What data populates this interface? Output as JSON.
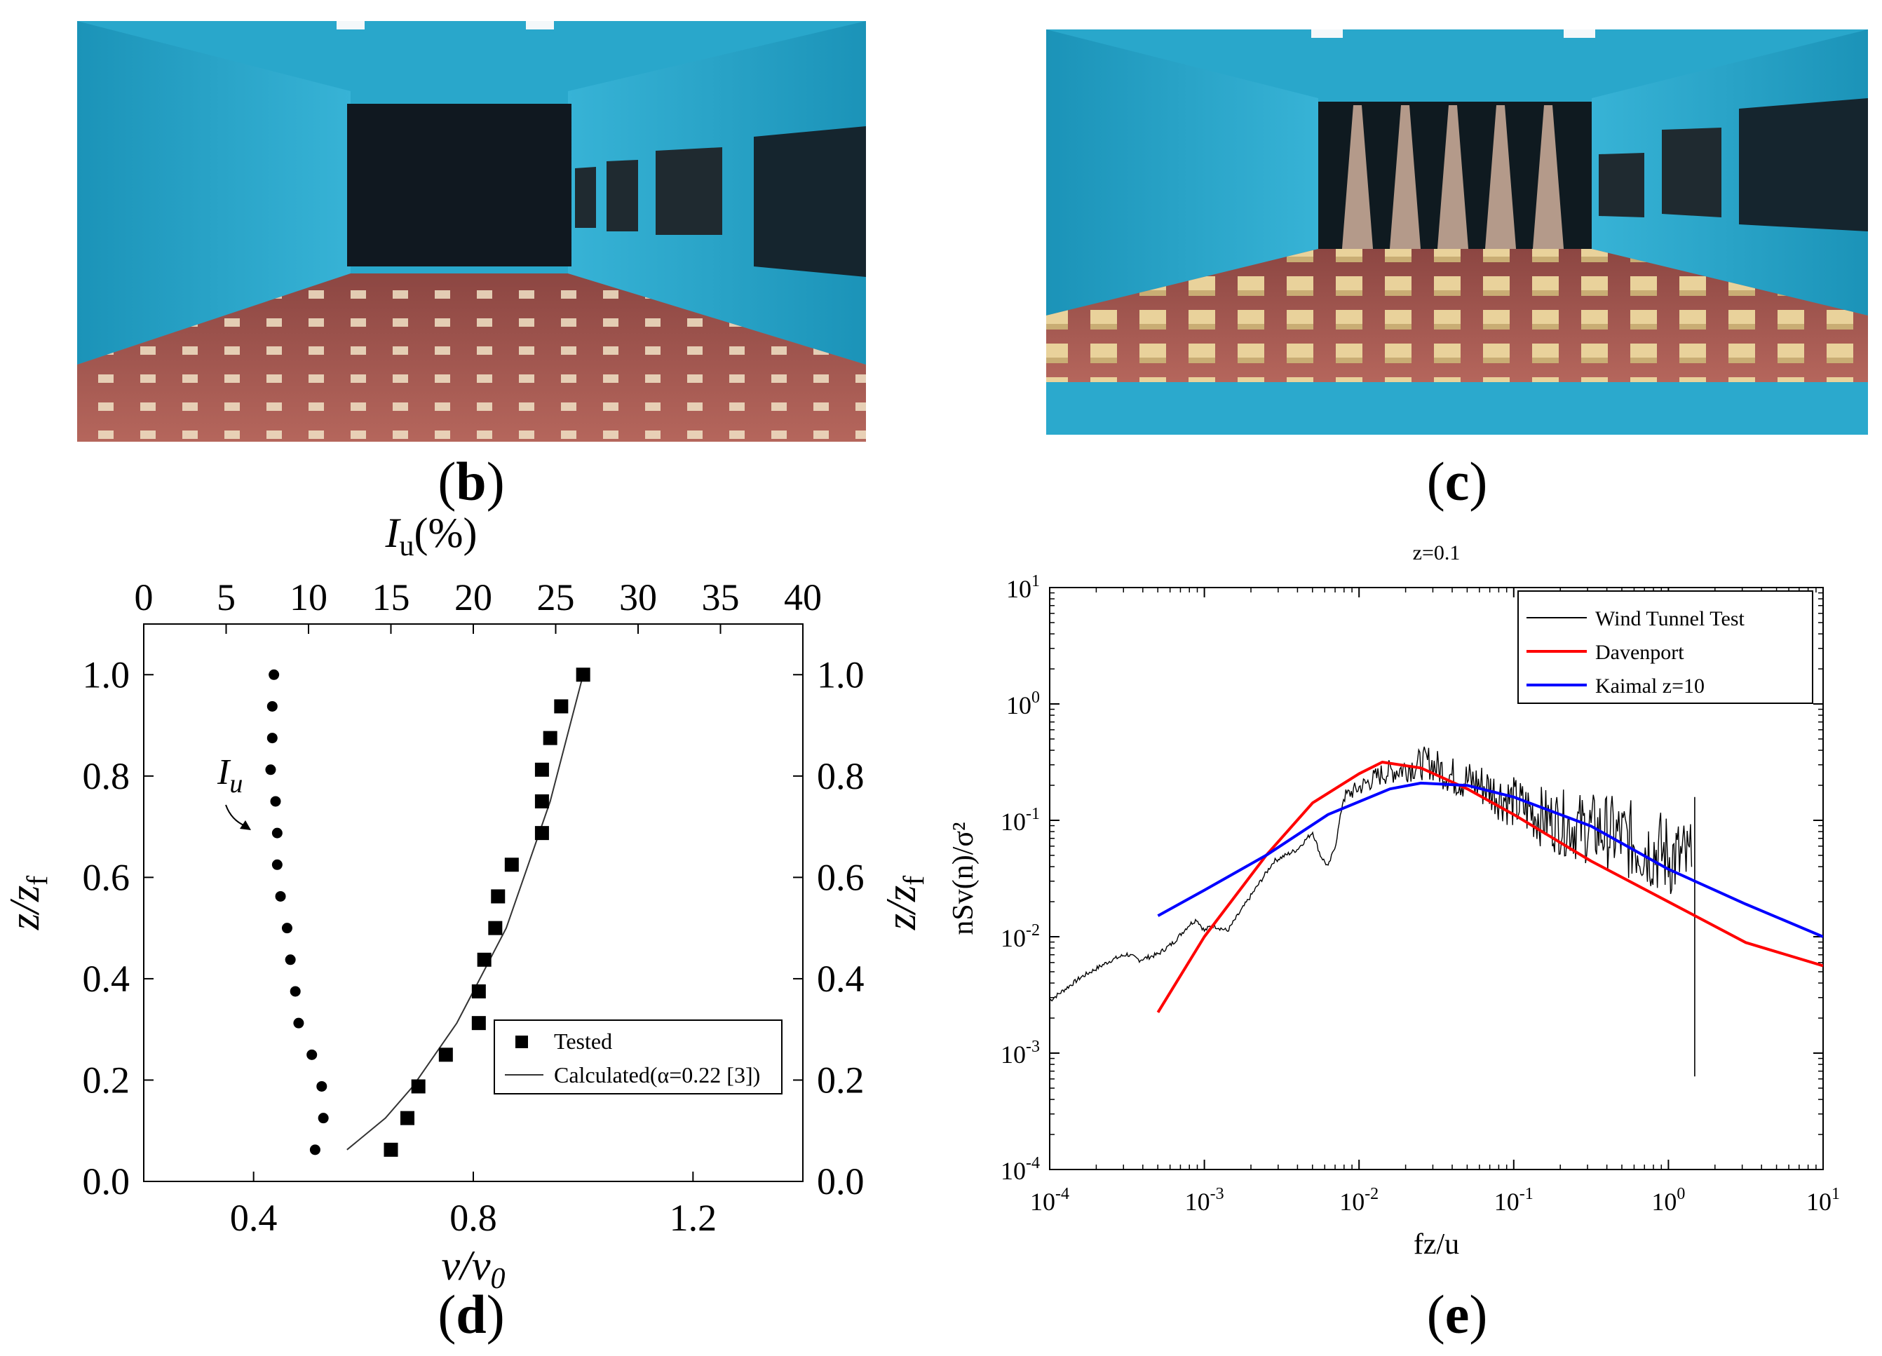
{
  "panels": {
    "b": {
      "label": "b"
    },
    "c": {
      "label": "c"
    },
    "d": {
      "label": "d"
    },
    "e": {
      "label": "e"
    }
  },
  "colors": {
    "tunnel_wall": "#25a4c7",
    "tunnel_floor": "#a85b55",
    "roughness_block": "#e8d4a0",
    "davenport": "#ff0000",
    "kaimal": "#0000ff",
    "wind_tunnel": "#000000"
  },
  "photos": {
    "b": {
      "icon": "wind-tunnel-empty-photo"
    },
    "c": {
      "icon": "wind-tunnel-roughness-spires-photo"
    }
  },
  "chart_data": [
    {
      "id": "d",
      "type": "scatter",
      "title": "",
      "xlabel_prefix": "v/v",
      "xlabel_sub": "0",
      "xlim": [
        0.2,
        1.4
      ],
      "xticks": [
        "0.4",
        "0.8",
        "1.2"
      ],
      "xtick_values": [
        0.4,
        0.8,
        1.2
      ],
      "ylabel_prefix": "z/z",
      "ylabel_sub": "f",
      "ylim": [
        0.0,
        1.1
      ],
      "yticks": [
        "0.0",
        "0.2",
        "0.4",
        "0.6",
        "0.8",
        "1.0"
      ],
      "ytick_values": [
        0.0,
        0.2,
        0.4,
        0.6,
        0.8,
        1.0
      ],
      "top_axis_label_prefix": "I",
      "top_axis_label_sub": "u",
      "top_axis_label_suffix": "(%)",
      "top_xlim": [
        0,
        40
      ],
      "top_xticks": [
        "0",
        "5",
        "10",
        "15",
        "20",
        "25",
        "30",
        "35",
        "40"
      ],
      "top_xtick_values": [
        0,
        5,
        10,
        15,
        20,
        25,
        30,
        35,
        40
      ],
      "annotation_prefix": "I",
      "annotation_sub": "u",
      "legend_position": "bottom-right",
      "series": [
        {
          "name": "Tested",
          "marker": "square",
          "axis": "bottom",
          "points": [
            [
              0.65,
              0.0625
            ],
            [
              0.68,
              0.125
            ],
            [
              0.7,
              0.1875
            ],
            [
              0.75,
              0.25
            ],
            [
              0.81,
              0.3125
            ],
            [
              0.81,
              0.375
            ],
            [
              0.82,
              0.4375
            ],
            [
              0.84,
              0.5
            ],
            [
              0.845,
              0.5625
            ],
            [
              0.87,
              0.625
            ],
            [
              0.925,
              0.6875
            ],
            [
              0.925,
              0.75
            ],
            [
              0.925,
              0.8125
            ],
            [
              0.94,
              0.875
            ],
            [
              0.96,
              0.9375
            ],
            [
              1.0,
              1.0
            ]
          ]
        },
        {
          "name": "Calculated(α=0.22 [3])",
          "marker": "line",
          "axis": "bottom",
          "points": [
            [
              0.57,
              0.0625
            ],
            [
              0.64,
              0.125
            ],
            [
              0.69,
              0.1875
            ],
            [
              0.73,
              0.25
            ],
            [
              0.77,
              0.3125
            ],
            [
              0.8,
              0.375
            ],
            [
              0.83,
              0.4375
            ],
            [
              0.86,
              0.5
            ],
            [
              0.88,
              0.5625
            ],
            [
              0.9,
              0.625
            ],
            [
              0.92,
              0.6875
            ],
            [
              0.94,
              0.75
            ],
            [
              0.955,
              0.8125
            ],
            [
              0.97,
              0.875
            ],
            [
              0.985,
              0.9375
            ],
            [
              1.0,
              1.0
            ]
          ]
        },
        {
          "name": "I_u",
          "marker": "circle",
          "axis": "top",
          "points": [
            [
              10.4,
              0.0625
            ],
            [
              10.9,
              0.125
            ],
            [
              10.8,
              0.1875
            ],
            [
              10.2,
              0.25
            ],
            [
              9.4,
              0.3125
            ],
            [
              9.2,
              0.375
            ],
            [
              8.9,
              0.4375
            ],
            [
              8.7,
              0.5
            ],
            [
              8.3,
              0.5625
            ],
            [
              8.1,
              0.625
            ],
            [
              8.1,
              0.6875
            ],
            [
              8.0,
              0.75
            ],
            [
              7.7,
              0.8125
            ],
            [
              7.8,
              0.875
            ],
            [
              7.8,
              0.9375
            ],
            [
              7.9,
              1.0
            ]
          ]
        }
      ]
    },
    {
      "id": "e",
      "type": "line",
      "title": "z=0.1",
      "xlabel": "fz/u",
      "xscale": "log",
      "xlim_exp": [
        -4,
        1
      ],
      "xtick_exponents": [
        "-4",
        "-3",
        "-2",
        "-1",
        "0",
        "1"
      ],
      "xtick_base": "10",
      "ylabel": "nSv(n)/σ²",
      "yscale": "log",
      "ylim_exp": [
        -4,
        1
      ],
      "ytick_exponents": [
        "1",
        "0",
        "-1",
        "-2",
        "-3",
        "-4"
      ],
      "ytick_base": "10",
      "legend_position": "top-right",
      "series": [
        {
          "name": "Wind Tunnel Test",
          "color": "#000000",
          "style": "noisy",
          "points": [
            [
              -4.0,
              -2.55
            ],
            [
              -3.8,
              -2.35
            ],
            [
              -3.6,
              -2.2
            ],
            [
              -3.5,
              -2.15
            ],
            [
              -3.42,
              -2.2
            ],
            [
              -3.3,
              -2.15
            ],
            [
              -3.2,
              -2.05
            ],
            [
              -3.1,
              -1.9
            ],
            [
              -3.05,
              -1.85
            ],
            [
              -3.0,
              -1.95
            ],
            [
              -2.95,
              -1.9
            ],
            [
              -2.85,
              -1.95
            ],
            [
              -2.7,
              -1.65
            ],
            [
              -2.55,
              -1.35
            ],
            [
              -2.4,
              -1.25
            ],
            [
              -2.3,
              -1.1
            ],
            [
              -2.25,
              -1.3
            ],
            [
              -2.2,
              -1.4
            ],
            [
              -2.15,
              -1.2
            ],
            [
              -2.1,
              -0.8
            ],
            [
              -2.0,
              -0.72
            ],
            [
              -1.85,
              -0.6
            ],
            [
              -1.7,
              -0.55
            ],
            [
              -1.55,
              -0.5
            ],
            [
              -1.4,
              -0.62
            ],
            [
              -1.2,
              -0.7
            ],
            [
              -1.0,
              -0.85
            ],
            [
              -0.8,
              -0.98
            ],
            [
              -0.6,
              -1.05
            ],
            [
              -0.4,
              -1.1
            ],
            [
              -0.2,
              -1.2
            ],
            [
              0.0,
              -1.3
            ],
            [
              0.1,
              -1.35
            ],
            [
              0.15,
              -1.4
            ]
          ],
          "spike": {
            "x": 0.17,
            "top": -0.8,
            "bottom": -3.2
          }
        },
        {
          "name": "Davenport",
          "color": "#ff0000",
          "style": "smooth",
          "points": [
            [
              -3.3,
              -2.65
            ],
            [
              -3.0,
              -2.0
            ],
            [
              -2.6,
              -1.3
            ],
            [
              -2.3,
              -0.85
            ],
            [
              -2.0,
              -0.6
            ],
            [
              -1.85,
              -0.5
            ],
            [
              -1.6,
              -0.55
            ],
            [
              -1.3,
              -0.73
            ],
            [
              -1.0,
              -0.95
            ],
            [
              -0.5,
              -1.35
            ],
            [
              0.0,
              -1.7
            ],
            [
              0.5,
              -2.05
            ],
            [
              1.0,
              -2.25
            ]
          ]
        },
        {
          "name": "Kaimal z=10",
          "color": "#0000ff",
          "style": "smooth",
          "points": [
            [
              -3.3,
              -1.82
            ],
            [
              -3.0,
              -1.6
            ],
            [
              -2.6,
              -1.3
            ],
            [
              -2.2,
              -0.95
            ],
            [
              -1.8,
              -0.73
            ],
            [
              -1.6,
              -0.68
            ],
            [
              -1.3,
              -0.7
            ],
            [
              -1.0,
              -0.8
            ],
            [
              -0.5,
              -1.05
            ],
            [
              0.0,
              -1.42
            ],
            [
              0.5,
              -1.72
            ],
            [
              1.0,
              -2.0
            ]
          ]
        }
      ]
    }
  ]
}
